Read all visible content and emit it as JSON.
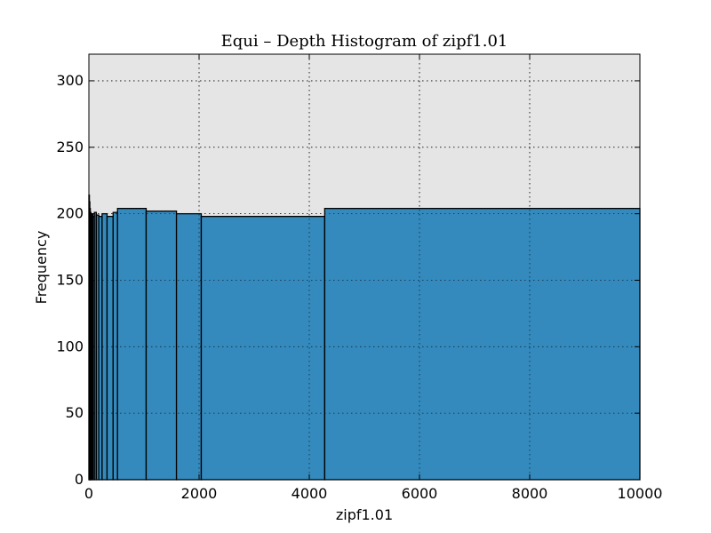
{
  "chart_data": {
    "type": "bar",
    "title": "Equi – Depth Histogram of zipf1.01",
    "xlabel": "zipf1.01",
    "ylabel": "Frequency",
    "xlim": [
      0,
      10000
    ],
    "ylim": [
      0,
      320
    ],
    "xticks": [
      0,
      2000,
      4000,
      6000,
      8000,
      10000
    ],
    "yticks": [
      0,
      50,
      100,
      150,
      200,
      250,
      300
    ],
    "grid": true,
    "bar_color": "#348abd",
    "edge_color": "#000000",
    "background_color": "#e5e5e5",
    "bins": [
      {
        "left": 0,
        "right": 8,
        "value": 214
      },
      {
        "left": 8,
        "right": 16,
        "value": 209
      },
      {
        "left": 16,
        "right": 26,
        "value": 204
      },
      {
        "left": 26,
        "right": 38,
        "value": 201
      },
      {
        "left": 38,
        "right": 54,
        "value": 199
      },
      {
        "left": 54,
        "right": 74,
        "value": 200
      },
      {
        "left": 74,
        "right": 100,
        "value": 198
      },
      {
        "left": 100,
        "right": 135,
        "value": 201
      },
      {
        "left": 135,
        "right": 180,
        "value": 199
      },
      {
        "left": 180,
        "right": 240,
        "value": 198
      },
      {
        "left": 240,
        "right": 330,
        "value": 200
      },
      {
        "left": 330,
        "right": 440,
        "value": 198
      },
      {
        "left": 440,
        "right": 520,
        "value": 201
      },
      {
        "left": 520,
        "right": 1040,
        "value": 204
      },
      {
        "left": 1040,
        "right": 1590,
        "value": 202
      },
      {
        "left": 1590,
        "right": 2040,
        "value": 200
      },
      {
        "left": 2040,
        "right": 4280,
        "value": 198
      },
      {
        "left": 4280,
        "right": 10000,
        "value": 204
      }
    ]
  }
}
